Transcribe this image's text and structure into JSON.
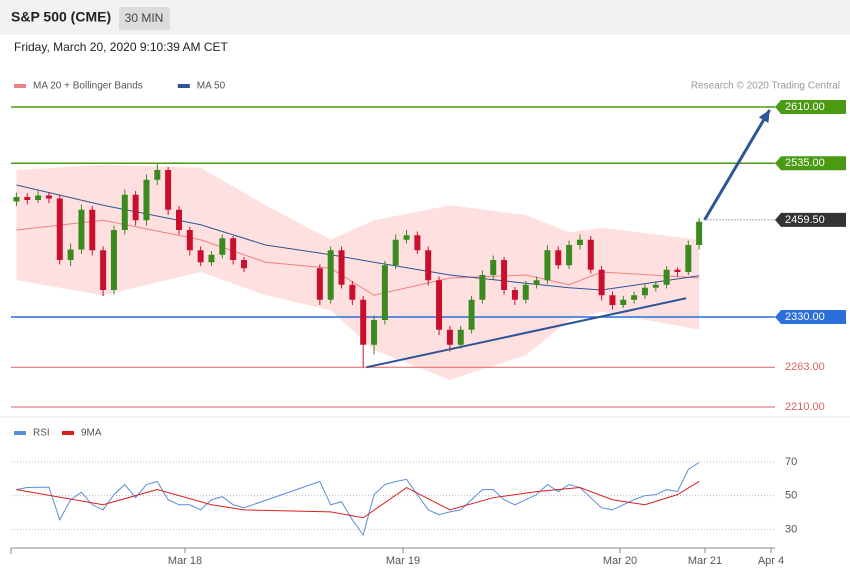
{
  "header": {
    "symbol": "S&P 500 (CME)",
    "timeframe": "30 MIN",
    "timestamp": "Friday, March 20, 2020 9:10:39 AM CET"
  },
  "chart_data": [
    {
      "type": "candlestick",
      "credit": "Research © 2020 Trading Central",
      "xlim": [
        -0.5,
        70
      ],
      "ylim": [
        2200,
        2662
      ],
      "candles": {
        "up_color": "#3a8a1f",
        "down_color": "#c8102e",
        "x": [
          0,
          1,
          2,
          3,
          4,
          5,
          6,
          7,
          8,
          9,
          10,
          11,
          12,
          13,
          14,
          15,
          16,
          17,
          18,
          19,
          20,
          21,
          28,
          29,
          30,
          31,
          32,
          33,
          34,
          35,
          36,
          37,
          38,
          39,
          40,
          41,
          42,
          43,
          44,
          45,
          46,
          47,
          48,
          49,
          50,
          51,
          52,
          53,
          54,
          55,
          56,
          57,
          58,
          59,
          60,
          61,
          62,
          63
        ],
        "ohlc": [
          [
            2484,
            2496,
            2478,
            2490
          ],
          [
            2490,
            2495,
            2480,
            2486
          ],
          [
            2486,
            2498,
            2482,
            2492
          ],
          [
            2492,
            2496,
            2482,
            2488
          ],
          [
            2488,
            2492,
            2400,
            2406
          ],
          [
            2406,
            2428,
            2398,
            2420
          ],
          [
            2420,
            2480,
            2414,
            2473
          ],
          [
            2473,
            2478,
            2412,
            2419
          ],
          [
            2419,
            2424,
            2358,
            2366
          ],
          [
            2366,
            2452,
            2360,
            2446
          ],
          [
            2446,
            2500,
            2440,
            2493
          ],
          [
            2493,
            2498,
            2452,
            2459
          ],
          [
            2459,
            2520,
            2452,
            2513
          ],
          [
            2513,
            2535,
            2506,
            2526
          ],
          [
            2526,
            2530,
            2466,
            2473
          ],
          [
            2473,
            2478,
            2440,
            2446
          ],
          [
            2446,
            2450,
            2412,
            2419
          ],
          [
            2419,
            2424,
            2398,
            2403
          ],
          [
            2403,
            2418,
            2398,
            2413
          ],
          [
            2413,
            2440,
            2408,
            2435
          ],
          [
            2435,
            2438,
            2400,
            2406
          ],
          [
            2406,
            2410,
            2390,
            2395
          ],
          [
            2395,
            2400,
            2346,
            2353
          ],
          [
            2353,
            2424,
            2348,
            2419
          ],
          [
            2419,
            2424,
            2368,
            2373
          ],
          [
            2373,
            2378,
            2346,
            2353
          ],
          [
            2353,
            2358,
            2263,
            2293
          ],
          [
            2293,
            2332,
            2280,
            2326
          ],
          [
            2326,
            2405,
            2320,
            2399
          ],
          [
            2399,
            2440,
            2394,
            2433
          ],
          [
            2433,
            2446,
            2428,
            2439
          ],
          [
            2439,
            2444,
            2414,
            2419
          ],
          [
            2419,
            2424,
            2372,
            2379
          ],
          [
            2379,
            2384,
            2306,
            2313
          ],
          [
            2313,
            2318,
            2284,
            2293
          ],
          [
            2293,
            2318,
            2288,
            2313
          ],
          [
            2313,
            2358,
            2308,
            2353
          ],
          [
            2353,
            2392,
            2348,
            2386
          ],
          [
            2386,
            2412,
            2380,
            2406
          ],
          [
            2406,
            2410,
            2360,
            2366
          ],
          [
            2366,
            2370,
            2346,
            2353
          ],
          [
            2353,
            2378,
            2348,
            2373
          ],
          [
            2373,
            2384,
            2368,
            2379
          ],
          [
            2379,
            2426,
            2374,
            2419
          ],
          [
            2419,
            2424,
            2394,
            2399
          ],
          [
            2399,
            2432,
            2394,
            2426
          ],
          [
            2426,
            2440,
            2420,
            2433
          ],
          [
            2433,
            2438,
            2388,
            2393
          ],
          [
            2393,
            2398,
            2352,
            2359
          ],
          [
            2359,
            2364,
            2340,
            2346
          ],
          [
            2346,
            2358,
            2342,
            2353
          ],
          [
            2353,
            2364,
            2348,
            2359
          ],
          [
            2359,
            2374,
            2354,
            2369
          ],
          [
            2369,
            2378,
            2364,
            2373
          ],
          [
            2373,
            2398,
            2368,
            2393
          ],
          [
            2393,
            2396,
            2384,
            2390
          ],
          [
            2390,
            2432,
            2386,
            2426
          ],
          [
            2426,
            2462,
            2420,
            2457
          ]
        ]
      },
      "series": [
        {
          "name": "MA 20 + Bollinger Bands",
          "color": "#f08080",
          "band_color": "#ffe0e0",
          "x": [
            0,
            8,
            17,
            23,
            29,
            33,
            40,
            47,
            51,
            54,
            63
          ],
          "values": [
            2446,
            2459,
            2433,
            2403,
            2395,
            2359,
            2382,
            2386,
            2373,
            2390,
            2382
          ],
          "upper": [
            2526,
            2533,
            2529,
            2479,
            2433,
            2459,
            2479,
            2466,
            2443,
            2449,
            2433
          ],
          "lower": [
            2379,
            2359,
            2390,
            2359,
            2339,
            2286,
            2246,
            2279,
            2326,
            2337,
            2313
          ]
        },
        {
          "name": "MA 50",
          "color": "#2e5597",
          "x": [
            0,
            8,
            17,
            23,
            29,
            33,
            40,
            47,
            51,
            54,
            63
          ],
          "values": [
            2506,
            2479,
            2453,
            2426,
            2413,
            2403,
            2386,
            2375,
            2369,
            2366,
            2385
          ]
        }
      ],
      "levels": [
        {
          "value": 2610,
          "label": "2610.00",
          "color": "#4a9a12",
          "boxed": true
        },
        {
          "value": 2535,
          "label": "2535.00",
          "color": "#4a9a12",
          "boxed": true
        },
        {
          "value": 2330,
          "label": "2330.00",
          "color": "#2a6fdb",
          "boxed": true
        },
        {
          "value": 2263,
          "label": "2263.00",
          "color": "#e06060",
          "boxed": false
        },
        {
          "value": 2210,
          "label": "2210.00",
          "color": "#e06060",
          "boxed": false
        }
      ],
      "last_price": {
        "value": 2459.5,
        "label": "2459.50",
        "color": "#333333"
      },
      "trendline": {
        "color": "#2e5597",
        "x": [
          32.3,
          61.8
        ],
        "y": [
          2263,
          2355
        ]
      },
      "arrow": {
        "color": "#2e5597",
        "x": [
          63.5,
          69.5
        ],
        "y": [
          2459.5,
          2606
        ]
      }
    },
    {
      "type": "line",
      "xlim": [
        -0.5,
        70
      ],
      "ylim": [
        19,
        80
      ],
      "yticks": [
        70,
        50,
        30
      ],
      "xticks": [
        {
          "value": 15.56,
          "label": "Mar 18"
        },
        {
          "value": 35.67,
          "label": "Mar 19"
        },
        {
          "value": 55.7,
          "label": "Mar 20"
        },
        {
          "value": 63.54,
          "label": "Mar 21"
        },
        {
          "value": 69.63,
          "label": "Apr 4"
        }
      ],
      "series": [
        {
          "name": "RSI",
          "color": "#5b8bd8",
          "x": [
            0,
            1,
            2,
            3,
            4,
            5,
            6,
            7,
            8,
            9,
            10,
            11,
            12,
            13,
            14,
            15,
            16,
            17,
            18,
            19,
            20,
            21,
            28,
            29,
            30,
            31,
            32,
            33,
            34,
            35,
            36,
            37,
            38,
            39,
            40,
            41,
            42,
            43,
            44,
            45,
            46,
            47,
            48,
            49,
            50,
            51,
            52,
            53,
            54,
            55,
            56,
            57,
            58,
            59,
            60,
            61,
            62,
            63
          ],
          "values": [
            53.6,
            54.8,
            55,
            55,
            35.7,
            47.6,
            52,
            44.6,
            41.6,
            50.6,
            56.6,
            48.8,
            56.6,
            58.4,
            47.6,
            44.6,
            44.6,
            41.6,
            47.6,
            49.4,
            44.6,
            42.8,
            58.4,
            44.6,
            46.4,
            35.7,
            26.7,
            50.6,
            56.6,
            58.4,
            59.6,
            50.6,
            41.6,
            38.7,
            40.4,
            41.6,
            47.6,
            53.6,
            53.6,
            47.6,
            44.6,
            47.6,
            50.6,
            56.6,
            52.4,
            56.6,
            54.8,
            48.8,
            42.8,
            41.6,
            44.6,
            47.6,
            50,
            50.6,
            53.6,
            52.4,
            65.5,
            69.7
          ]
        },
        {
          "name": "9MA",
          "color": "#d62020",
          "x": [
            0,
            8,
            13,
            18,
            21,
            29,
            32,
            36,
            40,
            44,
            48,
            52,
            55,
            58,
            61,
            63
          ],
          "values": [
            53.6,
            44.6,
            53.6,
            44.6,
            41.6,
            40.4,
            36.9,
            54.8,
            41.6,
            48.8,
            52.4,
            54.8,
            47.6,
            44.6,
            50.6,
            58.4
          ]
        }
      ]
    }
  ]
}
